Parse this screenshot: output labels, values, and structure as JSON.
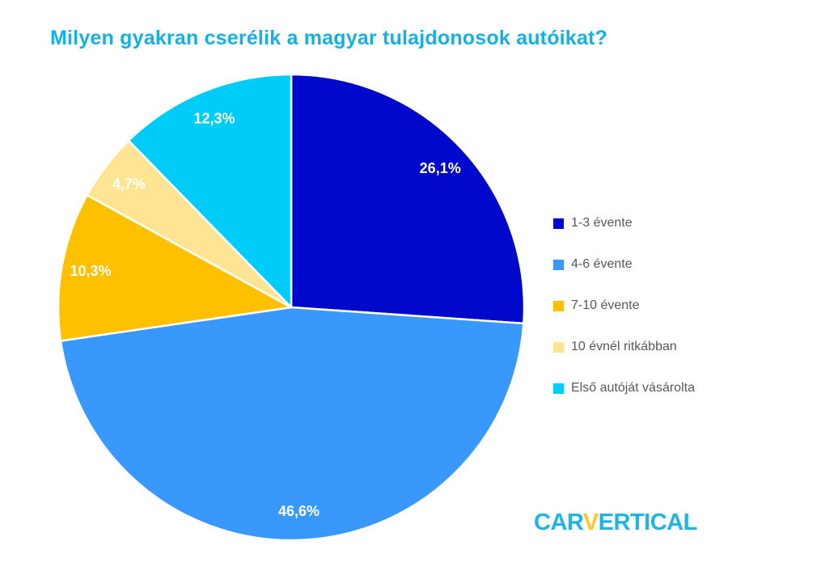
{
  "header": {
    "title": "Milyen gyakran cserélik a magyar tulajdonosok autóikat?",
    "title_color": "#12B1E8"
  },
  "chart_data": {
    "type": "pie",
    "title": "Milyen gyakran cserélik a magyar tulajdonosok autóikat?",
    "categories": [
      "1-3 évente",
      "4-6 évente",
      "7-10 évente",
      "10 évnél ritkábban",
      "Első autóját vásárolta"
    ],
    "values": [
      26.1,
      46.6,
      10.3,
      4.7,
      12.3
    ],
    "value_labels": [
      "26,1%",
      "46,6%",
      "10,3%",
      "4,7%",
      "12,3%"
    ],
    "slice_colors": [
      "#0008CB",
      "#3898FB",
      "#FFC000",
      "#FFE593",
      "#00CCFA"
    ],
    "slice_label_color": "#FFFFFF",
    "start_angle_deg": 0,
    "direction": "clockwise",
    "legend_position": "right",
    "legend_text_color": "#595959",
    "grid": false
  },
  "logo": {
    "prefix": "CAR",
    "check": "V",
    "suffix": "ERTICAL",
    "text_color": "#1FB4E8",
    "check_color": "#FFC827"
  }
}
